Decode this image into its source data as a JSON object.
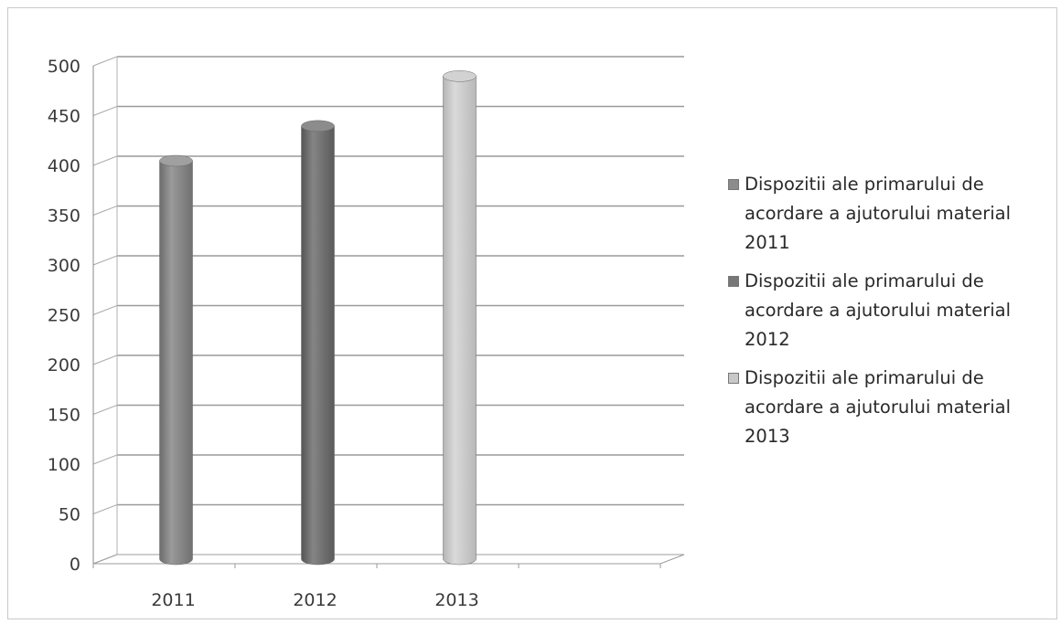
{
  "chart_data": {
    "type": "bar",
    "style": "3d-cylinder",
    "categories": [
      "2011",
      "2012",
      "2013"
    ],
    "series": [
      {
        "name": "Dispozitii ale primarului de acordare a ajutorului material 2011",
        "values": [
          400,
          null,
          null
        ],
        "color": "#8c8c8c"
      },
      {
        "name": "Dispozitii ale primarului de acordare a ajutorului material 2012",
        "values": [
          null,
          435,
          null
        ],
        "color": "#777777"
      },
      {
        "name": "Dispozitii ale primarului de acordare a ajutorului material 2013",
        "values": [
          null,
          null,
          485
        ],
        "color": "#c8c8c8"
      }
    ],
    "yticks": [
      "0",
      "50",
      "100",
      "150",
      "200",
      "250",
      "300",
      "350",
      "400",
      "450",
      "500"
    ],
    "ylim": [
      0,
      500
    ],
    "grid": true,
    "legend_position": "right",
    "title": "",
    "xlabel": "",
    "ylabel": ""
  }
}
